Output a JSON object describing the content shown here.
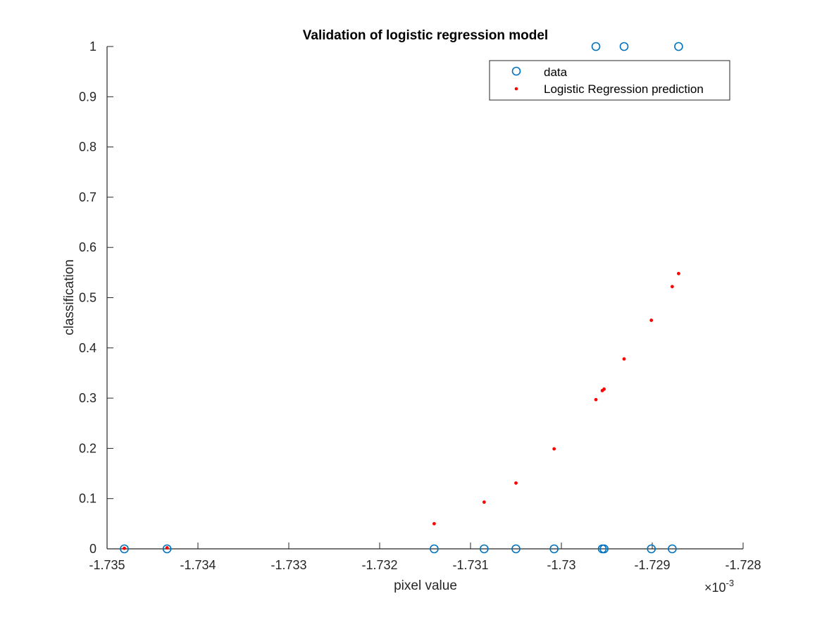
{
  "chart_data": {
    "type": "scatter",
    "title": "Validation of logistic regression model",
    "xlabel": "pixel value",
    "ylabel": "classification",
    "xlim": [
      -1.735,
      -1.728
    ],
    "ylim": [
      0,
      1
    ],
    "x_ticks": [
      -1.735,
      -1.734,
      -1.733,
      -1.732,
      -1.731,
      -1.73,
      -1.729,
      -1.728
    ],
    "x_tick_labels": [
      "-1.735",
      "-1.734",
      "-1.733",
      "-1.732",
      "-1.731",
      "-1.73",
      "-1.729",
      "-1.728"
    ],
    "y_ticks": [
      0,
      0.1,
      0.2,
      0.3,
      0.4,
      0.5,
      0.6,
      0.7,
      0.8,
      0.9,
      1
    ],
    "y_tick_labels": [
      "0",
      "0.1",
      "0.2",
      "0.3",
      "0.4",
      "0.5",
      "0.6",
      "0.7",
      "0.8",
      "0.9",
      "1"
    ],
    "x_exponent_label": "×10",
    "x_exponent_power": "-3",
    "grid": false,
    "legend_position": "top-right",
    "series": [
      {
        "name": "data",
        "marker": "open-circle",
        "color": "#0072bd",
        "points": [
          {
            "x": -1.73481,
            "y": 0
          },
          {
            "x": -1.73434,
            "y": 0
          },
          {
            "x": -1.7314,
            "y": 0
          },
          {
            "x": -1.73085,
            "y": 0
          },
          {
            "x": -1.7305,
            "y": 0
          },
          {
            "x": -1.73008,
            "y": 0
          },
          {
            "x": -1.72962,
            "y": 1
          },
          {
            "x": -1.72955,
            "y": 0
          },
          {
            "x": -1.72953,
            "y": 0
          },
          {
            "x": -1.72931,
            "y": 1
          },
          {
            "x": -1.72901,
            "y": 0
          },
          {
            "x": -1.72878,
            "y": 0
          },
          {
            "x": -1.72871,
            "y": 1
          }
        ]
      },
      {
        "name": "Logistic Regression prediction",
        "marker": "dot",
        "color": "#ff0000",
        "points": [
          {
            "x": -1.73481,
            "y": 0.001
          },
          {
            "x": -1.73434,
            "y": 0.002
          },
          {
            "x": -1.7314,
            "y": 0.05
          },
          {
            "x": -1.73085,
            "y": 0.093
          },
          {
            "x": -1.7305,
            "y": 0.131
          },
          {
            "x": -1.73008,
            "y": 0.199
          },
          {
            "x": -1.72962,
            "y": 0.297
          },
          {
            "x": -1.72955,
            "y": 0.315
          },
          {
            "x": -1.72953,
            "y": 0.318
          },
          {
            "x": -1.72931,
            "y": 0.378
          },
          {
            "x": -1.72901,
            "y": 0.455
          },
          {
            "x": -1.72878,
            "y": 0.522
          },
          {
            "x": -1.72871,
            "y": 0.548
          }
        ]
      }
    ]
  }
}
